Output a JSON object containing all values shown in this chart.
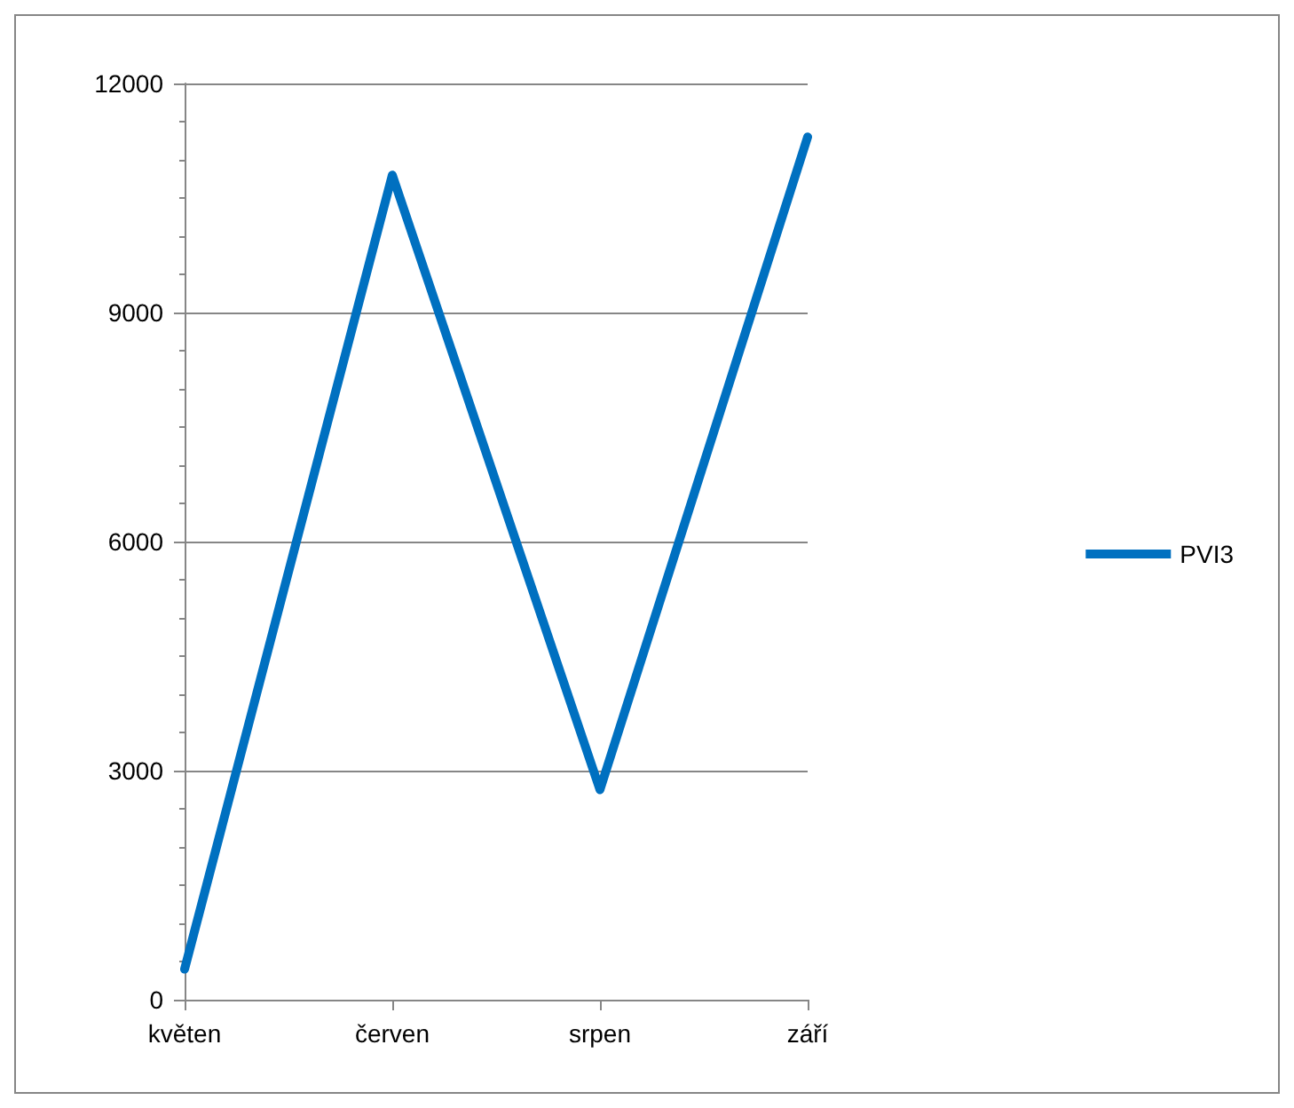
{
  "chart_data": {
    "type": "line",
    "categories": [
      "květen",
      "červen",
      "srpen",
      "září"
    ],
    "series": [
      {
        "name": "PVI3",
        "color": "#0070c0",
        "values": [
          400,
          10800,
          2750,
          11300
        ]
      }
    ],
    "ylim": [
      0,
      12000
    ],
    "yticks": [
      0,
      3000,
      6000,
      9000,
      12000
    ],
    "grid": "y",
    "legend": "right",
    "marker": "none",
    "line_style": "solid"
  }
}
